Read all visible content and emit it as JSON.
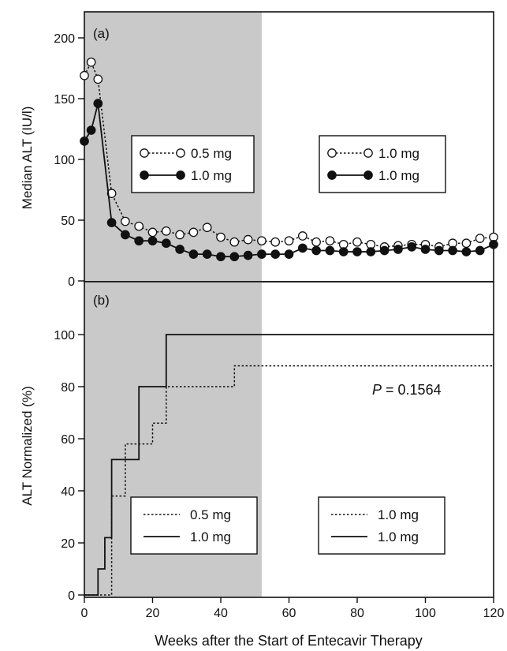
{
  "xlabel": "Weeks after the Start of Entecavir Therapy",
  "colors": {
    "shade": "#c9c9c9",
    "ink": "#111111",
    "open_marker": "#ffffff"
  },
  "chart_data": [
    {
      "type": "line",
      "panel_label": "(a)",
      "ylabel": "Median ALT (IU/l)",
      "xlim": [
        0,
        120
      ],
      "ylim": [
        0,
        220
      ],
      "x_ticks": [
        0,
        20,
        40,
        60,
        80,
        100,
        120
      ],
      "y_ticks": [
        0,
        50,
        100,
        150,
        200
      ],
      "shaded_x_range": [
        0,
        52
      ],
      "legends": [
        {
          "position": "center-left-in-shaded",
          "entries": [
            {
              "label": "0.5 mg",
              "style": "dotted-open-circle"
            },
            {
              "label": "1.0 mg",
              "style": "solid-filled-circle"
            }
          ]
        },
        {
          "position": "center-right",
          "entries": [
            {
              "label": "1.0 mg",
              "style": "dotted-open-circle"
            },
            {
              "label": "1.0 mg",
              "style": "solid-filled-circle"
            }
          ]
        }
      ],
      "series": [
        {
          "style": "dotted-open",
          "x": [
            0,
            2,
            4,
            8,
            12,
            16,
            20,
            24,
            28,
            32,
            36,
            40,
            44,
            48,
            52,
            56,
            60,
            64,
            68,
            72,
            76,
            80,
            84,
            88,
            92,
            96,
            100,
            104,
            108,
            112,
            116,
            120
          ],
          "y": [
            169,
            180,
            166,
            72,
            49,
            45,
            40,
            41,
            38,
            40,
            44,
            36,
            32,
            34,
            33,
            32,
            33,
            37,
            32,
            33,
            30,
            32,
            30,
            28,
            29,
            30,
            30,
            28,
            31,
            31,
            35,
            36
          ]
        },
        {
          "style": "solid-filled",
          "x": [
            0,
            2,
            4,
            8,
            12,
            16,
            20,
            24,
            28,
            32,
            36,
            40,
            44,
            48,
            52,
            56,
            60,
            64,
            68,
            72,
            76,
            80,
            84,
            88,
            92,
            96,
            100,
            104,
            108,
            112,
            116,
            120
          ],
          "y": [
            115,
            124,
            146,
            48,
            38,
            33,
            33,
            31,
            26,
            22,
            22,
            20,
            20,
            21,
            22,
            22,
            22,
            27,
            25,
            25,
            24,
            24,
            24,
            25,
            26,
            28,
            26,
            25,
            25,
            24,
            25,
            30
          ]
        }
      ]
    },
    {
      "type": "line",
      "panel_label": "(b)",
      "ylabel": "ALT Normalized (%)",
      "xlim": [
        0,
        120
      ],
      "ylim": [
        0,
        110
      ],
      "x_ticks": [
        0,
        20,
        40,
        60,
        80,
        100,
        120
      ],
      "y_ticks": [
        0,
        20,
        40,
        60,
        80,
        100
      ],
      "shaded_x_range": [
        0,
        52
      ],
      "annotation": {
        "label": "P",
        "value": " = 0.1564"
      },
      "legends": [
        {
          "position": "bottom-left-in-shaded",
          "entries": [
            {
              "label": "0.5 mg",
              "style": "dotted"
            },
            {
              "label": "1.0 mg",
              "style": "solid"
            }
          ]
        },
        {
          "position": "bottom-right",
          "entries": [
            {
              "label": "1.0 mg",
              "style": "dotted"
            },
            {
              "label": "1.0 mg",
              "style": "solid"
            }
          ]
        }
      ],
      "series": [
        {
          "style": "dotted-step",
          "x": [
            0,
            8,
            8,
            12,
            12,
            16,
            16,
            20,
            20,
            24,
            24,
            44,
            44,
            120
          ],
          "y": [
            0,
            0,
            38,
            38,
            58,
            58,
            58,
            58,
            66,
            66,
            80,
            80,
            88,
            88
          ]
        },
        {
          "style": "solid-step",
          "x": [
            0,
            4,
            4,
            6,
            6,
            8,
            8,
            16,
            16,
            24,
            24,
            120
          ],
          "y": [
            0,
            0,
            10,
            10,
            22,
            22,
            52,
            52,
            80,
            80,
            100,
            100
          ]
        }
      ]
    }
  ]
}
